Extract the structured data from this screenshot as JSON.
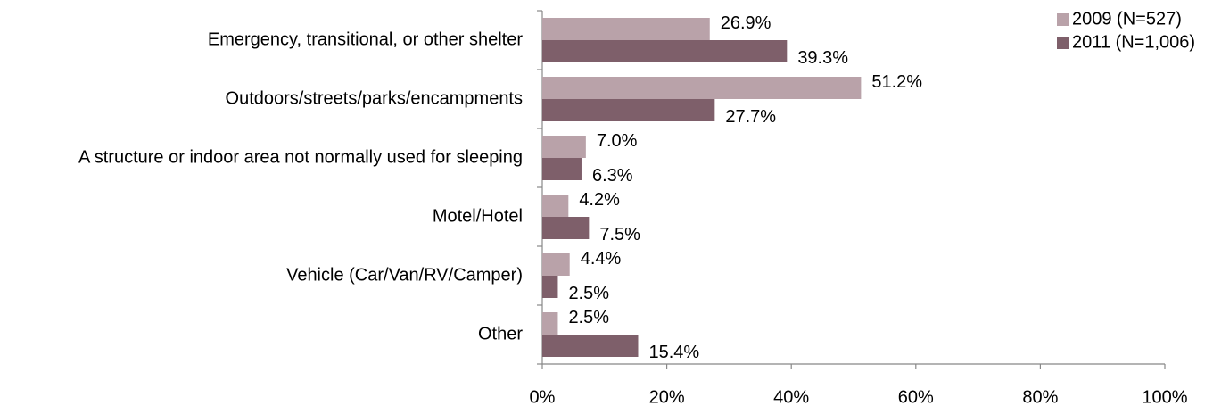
{
  "chart_data": {
    "type": "hbar",
    "categories": [
      "Emergency, transitional, or other shelter",
      "Outdoors/streets/parks/encampments",
      "A structure or indoor area not normally used for sleeping",
      "Motel/Hotel",
      "Vehicle (Car/Van/RV/Camper)",
      "Other"
    ],
    "series": [
      {
        "name": "2009 (N=527)",
        "color": "#b9a2a9",
        "values": [
          26.9,
          51.2,
          7.0,
          4.2,
          4.4,
          2.5
        ],
        "value_labels": [
          "26.9%",
          "51.2%",
          "7.0%",
          "4.2%",
          "4.4%",
          "2.5%"
        ]
      },
      {
        "name": "2011 (N=1,006)",
        "color": "#7e5f6a",
        "values": [
          39.3,
          27.7,
          6.3,
          7.5,
          2.5,
          15.4
        ],
        "value_labels": [
          "39.3%",
          "27.7%",
          "6.3%",
          "7.5%",
          "2.5%",
          "15.4%"
        ]
      }
    ],
    "xlim": [
      0,
      100
    ],
    "xticks": [
      {
        "value": 0,
        "label": "0%"
      },
      {
        "value": 20,
        "label": "20%"
      },
      {
        "value": 40,
        "label": "40%"
      },
      {
        "value": 60,
        "label": "60%"
      },
      {
        "value": 80,
        "label": "80%"
      },
      {
        "value": 100,
        "label": "100%"
      }
    ],
    "grid": false,
    "legend": "top-right"
  }
}
